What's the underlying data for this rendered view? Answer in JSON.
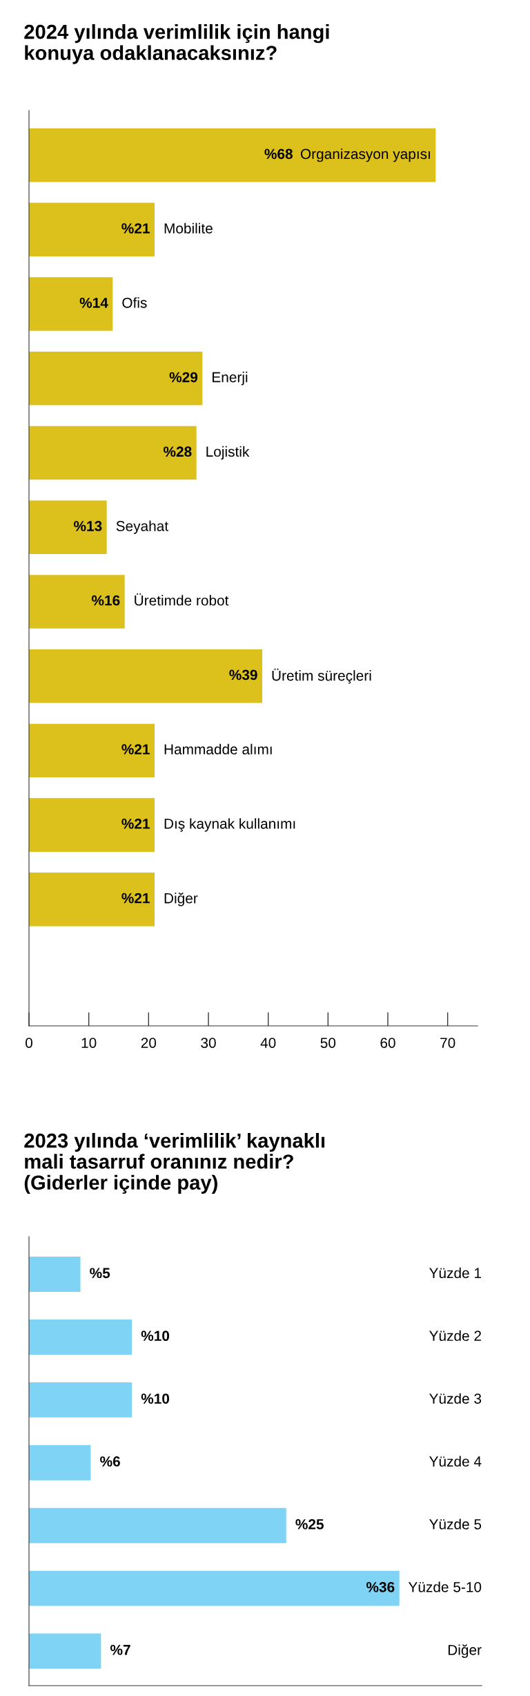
{
  "chart_data": [
    {
      "type": "bar",
      "orientation": "horizontal",
      "title": "2024 yılında verimlilik için hangi\nkonuya odaklanacaksınız?",
      "categories": [
        "Organizasyon yapısı",
        "Mobilite",
        "Ofis",
        "Enerji",
        "Lojistik",
        "Seyahat",
        "Üretimde robot",
        "Üretim süreçleri",
        "Hammadde alımı",
        "Dış kaynak kullanımı",
        "Diğer"
      ],
      "values": [
        68,
        21,
        14,
        29,
        28,
        13,
        16,
        39,
        21,
        21,
        21
      ],
      "value_labels": [
        "%68",
        "%21",
        "%14",
        "%29",
        "%28",
        "%13",
        "%16",
        "%39",
        "%21",
        "%21",
        "%21"
      ],
      "color": "#dcc01c",
      "xlim": [
        0,
        75
      ],
      "xticks": [
        0,
        10,
        20,
        30,
        40,
        50,
        60,
        70
      ],
      "grid": false,
      "legend": false
    },
    {
      "type": "bar",
      "orientation": "horizontal",
      "title": "2023 yılında ‘verimlilik’ kaynaklı\nmali tasarruf oranınız nedir?\n(Giderler içinde pay)",
      "categories": [
        "Yüzde 1",
        "Yüzde 2",
        "Yüzde 3",
        "Yüzde 4",
        "Yüzde 5",
        "Yüzde 5-10",
        "Diğer"
      ],
      "values": [
        5,
        10,
        10,
        6,
        25,
        36,
        7
      ],
      "value_labels": [
        "%5",
        "%10",
        "%10",
        "%6",
        "%25",
        "%36",
        "%7"
      ],
      "color": "#7fd3f5",
      "xlim": [
        0,
        44
      ],
      "grid": false,
      "legend": false
    }
  ]
}
